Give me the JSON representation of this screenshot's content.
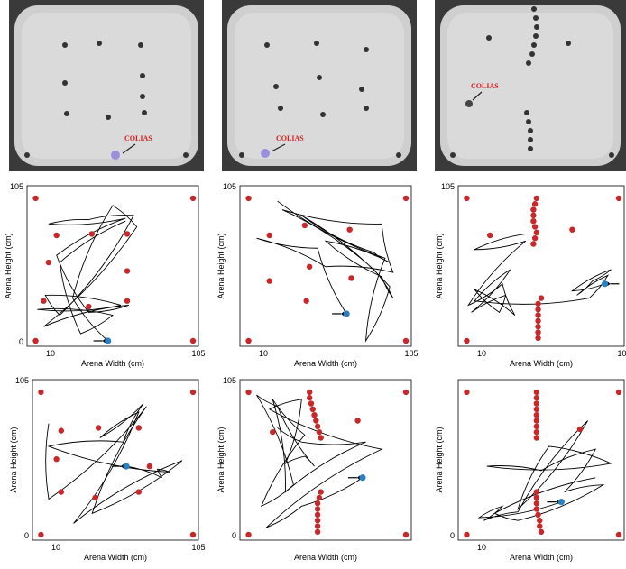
{
  "photo_label": "COLIAS",
  "chart_data": [
    {
      "type": "scatter",
      "panel": "row1-col1",
      "xlabel": "Arena Width (cm)",
      "ylabel": "Arena Height (cm)",
      "x_ticks": [
        "10",
        "105"
      ],
      "y_ticks": [
        "0",
        "105"
      ],
      "xlim": [
        5,
        105
      ],
      "ylim": [
        0,
        105
      ],
      "obstacles": [
        [
          7,
          100
        ],
        [
          105,
          100
        ],
        [
          20,
          74
        ],
        [
          42,
          75
        ],
        [
          64,
          75
        ],
        [
          15,
          55
        ],
        [
          64,
          49
        ],
        [
          12,
          28
        ],
        [
          40,
          24
        ],
        [
          64,
          28
        ],
        [
          7,
          0
        ],
        [
          105,
          0
        ]
      ],
      "robot": [
        52,
        0
      ],
      "trajectory": [
        [
          52,
          0
        ],
        [
          30,
          30
        ],
        [
          55,
          95
        ],
        [
          70,
          80
        ],
        [
          12,
          10
        ],
        [
          65,
          25
        ],
        [
          40,
          20
        ],
        [
          20,
          60
        ],
        [
          63,
          86
        ],
        [
          15,
          82
        ],
        [
          40,
          85
        ],
        [
          68,
          88
        ],
        [
          22,
          18
        ],
        [
          13,
          32
        ],
        [
          60,
          25
        ],
        [
          8,
          22
        ],
        [
          55,
          18
        ],
        [
          35,
          5
        ],
        [
          22,
          55
        ],
        [
          63,
          84
        ]
      ]
    },
    {
      "type": "scatter",
      "panel": "row1-col2",
      "xlabel": "Arena Width (cm)",
      "ylabel": "Arena Height (cm)",
      "x_ticks": [
        "10",
        "105"
      ],
      "y_ticks": [
        "105"
      ],
      "xlim": [
        5,
        105
      ],
      "ylim": [
        0,
        105
      ],
      "obstacles": [
        [
          7,
          100
        ],
        [
          105,
          100
        ],
        [
          20,
          74
        ],
        [
          42,
          81
        ],
        [
          70,
          78
        ],
        [
          45,
          52
        ],
        [
          20,
          42
        ],
        [
          71,
          44
        ],
        [
          43,
          28
        ],
        [
          7,
          0
        ],
        [
          105,
          0
        ]
      ],
      "robot": [
        68,
        19
      ],
      "trajectory": [
        [
          68,
          19
        ],
        [
          50,
          65
        ],
        [
          12,
          72
        ],
        [
          55,
          52
        ],
        [
          97,
          48
        ],
        [
          90,
          82
        ],
        [
          28,
          92
        ],
        [
          85,
          50
        ],
        [
          97,
          30
        ],
        [
          90,
          45
        ],
        [
          55,
          70
        ],
        [
          95,
          55
        ],
        [
          85,
          62
        ],
        [
          40,
          88
        ],
        [
          95,
          38
        ],
        [
          80,
          0
        ],
        [
          92,
          58
        ],
        [
          25,
          98
        ]
      ]
    },
    {
      "type": "scatter",
      "panel": "row1-col3",
      "xlabel": "Arena Width (cm)",
      "ylabel": "Arena Height (cm)",
      "x_ticks": [
        "10",
        "105"
      ],
      "y_ticks": [
        "105"
      ],
      "xlim": [
        5,
        105
      ],
      "ylim": [
        0,
        105
      ],
      "obstacles": [
        [
          7,
          100
        ],
        [
          105,
          100
        ],
        [
          22,
          74
        ],
        [
          75,
          78
        ],
        [
          52,
          100
        ],
        [
          51,
          96
        ],
        [
          50,
          92
        ],
        [
          50,
          88
        ],
        [
          50,
          84
        ],
        [
          51,
          80
        ],
        [
          52,
          76
        ],
        [
          51,
          72
        ],
        [
          50,
          68
        ],
        [
          55,
          30
        ],
        [
          53,
          26
        ],
        [
          53,
          22
        ],
        [
          53,
          18
        ],
        [
          53,
          14
        ],
        [
          53,
          10
        ],
        [
          53,
          6
        ],
        [
          53,
          2
        ],
        [
          7,
          0
        ]
      ],
      "robot": [
        96,
        40
      ],
      "trajectory": [
        [
          96,
          40
        ],
        [
          75,
          35
        ],
        [
          100,
          50
        ],
        [
          88,
          42
        ],
        [
          78,
          32
        ],
        [
          98,
          46
        ],
        [
          86,
          30
        ],
        [
          12,
          28
        ],
        [
          35,
          50
        ],
        [
          10,
          20
        ],
        [
          32,
          32
        ],
        [
          28,
          20
        ],
        [
          12,
          36
        ],
        [
          38,
          18
        ],
        [
          30,
          40
        ],
        [
          8,
          25
        ],
        [
          45,
          70
        ],
        [
          12,
          64
        ],
        [
          45,
          75
        ]
      ]
    },
    {
      "type": "scatter",
      "panel": "row2-col1",
      "xlabel": "Arena Width (cm)",
      "ylabel": "Arena Height (cm)",
      "x_ticks": [
        "10",
        "105"
      ],
      "y_ticks": [
        "0",
        "105"
      ],
      "xlim": [
        5,
        105
      ],
      "ylim": [
        0,
        105
      ],
      "obstacles": [
        [
          7,
          100
        ],
        [
          105,
          100
        ],
        [
          20,
          73
        ],
        [
          44,
          75
        ],
        [
          70,
          75
        ],
        [
          17,
          53
        ],
        [
          77,
          48
        ],
        [
          20,
          30
        ],
        [
          42,
          26
        ],
        [
          70,
          30
        ],
        [
          7,
          0
        ],
        [
          105,
          0
        ]
      ],
      "robot": [
        62,
        48
      ],
      "trajectory": [
        [
          62,
          48
        ],
        [
          85,
          40
        ],
        [
          82,
          46
        ],
        [
          90,
          44
        ],
        [
          12,
          62
        ],
        [
          60,
          65
        ],
        [
          73,
          92
        ],
        [
          45,
          68
        ],
        [
          70,
          86
        ],
        [
          28,
          8
        ],
        [
          98,
          52
        ],
        [
          40,
          15
        ],
        [
          75,
          90
        ],
        [
          12,
          25
        ],
        [
          12,
          78
        ]
      ]
    },
    {
      "type": "scatter",
      "panel": "row2-col2",
      "xlabel": "Arena Width (cm)",
      "ylabel": "Arena Height (cm)",
      "x_ticks": [],
      "y_ticks": [
        "0",
        "105"
      ],
      "xlim": [
        5,
        105
      ],
      "ylim": [
        0,
        105
      ],
      "obstacles": [
        [
          7,
          100
        ],
        [
          105,
          100
        ],
        [
          22,
          72
        ],
        [
          75,
          80
        ],
        [
          45,
          100
        ],
        [
          45,
          96
        ],
        [
          46,
          92
        ],
        [
          47,
          88
        ],
        [
          48,
          84
        ],
        [
          49,
          80
        ],
        [
          50,
          76
        ],
        [
          51,
          72
        ],
        [
          52,
          68
        ],
        [
          52,
          30
        ],
        [
          51,
          26
        ],
        [
          50,
          22
        ],
        [
          50,
          18
        ],
        [
          50,
          14
        ],
        [
          50,
          10
        ],
        [
          50,
          6
        ],
        [
          50,
          2
        ],
        [
          7,
          0
        ],
        [
          105,
          0
        ]
      ],
      "robot": [
        78,
        40
      ],
      "trajectory": [
        [
          78,
          40
        ],
        [
          40,
          20
        ],
        [
          18,
          5
        ],
        [
          90,
          60
        ],
        [
          20,
          88
        ],
        [
          40,
          95
        ],
        [
          30,
          50
        ],
        [
          42,
          55
        ],
        [
          48,
          48
        ],
        [
          25,
          90
        ],
        [
          12,
          98
        ],
        [
          35,
          35
        ],
        [
          15,
          20
        ],
        [
          42,
          70
        ],
        [
          22,
          95
        ],
        [
          30,
          30
        ],
        [
          80,
          65
        ],
        [
          40,
          65
        ],
        [
          25,
          75
        ]
      ]
    },
    {
      "type": "scatter",
      "panel": "row2-col3",
      "xlabel": "Arena Width (cm)",
      "ylabel": "Arena Height (cm)",
      "x_ticks": [
        "10"
      ],
      "y_ticks": [
        "0"
      ],
      "xlim": [
        5,
        105
      ],
      "ylim": [
        0,
        105
      ],
      "obstacles": [
        [
          7,
          100
        ],
        [
          105,
          100
        ],
        [
          80,
          74
        ],
        [
          52,
          100
        ],
        [
          52,
          96
        ],
        [
          52,
          92
        ],
        [
          52,
          88
        ],
        [
          52,
          84
        ],
        [
          52,
          80
        ],
        [
          52,
          76
        ],
        [
          52,
          72
        ],
        [
          52,
          68
        ],
        [
          52,
          30
        ],
        [
          52,
          26
        ],
        [
          52,
          22
        ],
        [
          52,
          18
        ],
        [
          53,
          14
        ],
        [
          54,
          10
        ],
        [
          54,
          6
        ],
        [
          55,
          2
        ],
        [
          7,
          0
        ],
        [
          105,
          0
        ]
      ],
      "robot": [
        68,
        23
      ],
      "trajectory": [
        [
          68,
          23
        ],
        [
          15,
          12
        ],
        [
          30,
          20
        ],
        [
          18,
          10
        ],
        [
          40,
          16
        ],
        [
          85,
          80
        ],
        [
          40,
          18
        ],
        [
          60,
          62
        ],
        [
          100,
          50
        ],
        [
          20,
          48
        ],
        [
          55,
          45
        ],
        [
          90,
          60
        ],
        [
          70,
          30
        ],
        [
          95,
          35
        ],
        [
          40,
          10
        ],
        [
          25,
          15
        ],
        [
          90,
          40
        ]
      ]
    }
  ]
}
